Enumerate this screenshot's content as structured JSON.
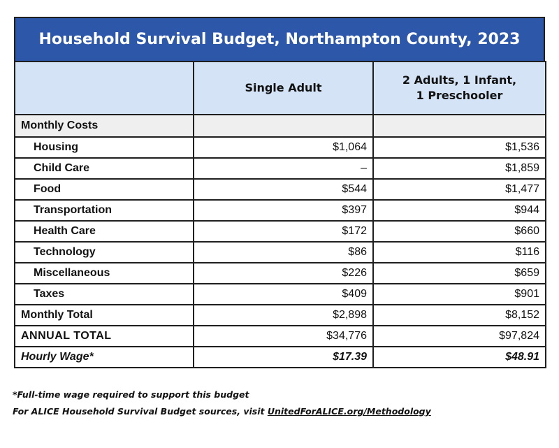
{
  "title": "Household Survival Budget, Northampton County, 2023",
  "columns": [
    "Single Adult",
    "2 Adults, 1 Infant,",
    "1 Preschooler"
  ],
  "section_label": "Monthly Costs",
  "rows": [
    {
      "label": "Housing",
      "single": "$1,064",
      "family": "$1,536"
    },
    {
      "label": "Child Care",
      "single": "–",
      "family": "$1,859"
    },
    {
      "label": "Food",
      "single": "$544",
      "family": "$1,477"
    },
    {
      "label": "Transportation",
      "single": "$397",
      "family": "$944"
    },
    {
      "label": "Health Care",
      "single": "$172",
      "family": "$660"
    },
    {
      "label": "Technology",
      "single": "$86",
      "family": "$116"
    },
    {
      "label": "Miscellaneous",
      "single": "$226",
      "family": "$659"
    },
    {
      "label": "Taxes",
      "single": "$409",
      "family": "$901"
    }
  ],
  "monthly_total": {
    "label": "Monthly Total",
    "single": "$2,898",
    "family": "$8,152"
  },
  "annual_total": {
    "label": "ANNUAL TOTAL",
    "single": "$34,776",
    "family": "$97,824"
  },
  "hourly_wage": {
    "label": "Hourly Wage*",
    "single": "$17.39",
    "family": "$48.91"
  },
  "footnote_1": "*Full-time wage required to support this budget",
  "footnote_2_prefix": "For ALICE Household Survival Budget sources, visit ",
  "footnote_2_link": "UnitedForALICE.org/Methodology"
}
